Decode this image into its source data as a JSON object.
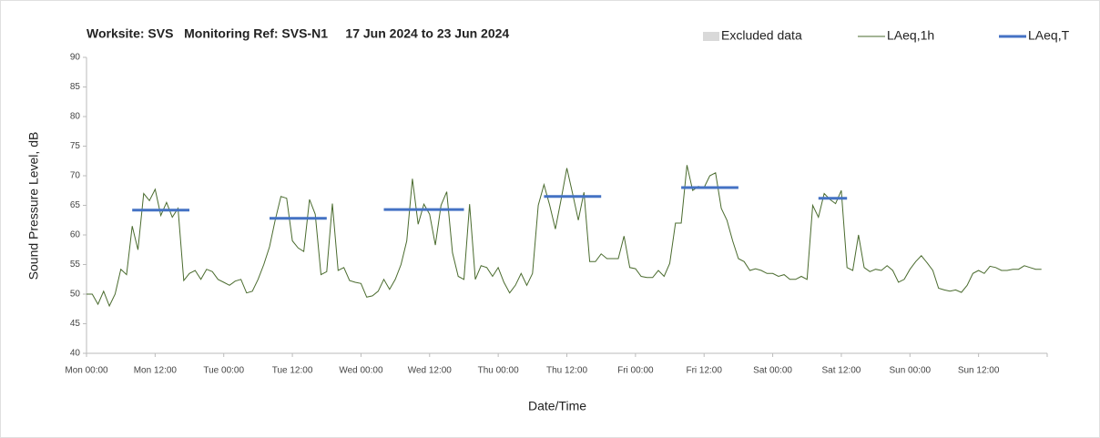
{
  "chart_data": {
    "type": "line",
    "title": "Worksite: SVS   Monitoring Ref: SVS-N1     17 Jun 2024 to 23 Jun 2024",
    "xlabel": "Date/Time",
    "ylabel": "Sound Pressure Level, dB",
    "ylim": [
      40,
      90
    ],
    "yticks": [
      40,
      45,
      50,
      55,
      60,
      65,
      70,
      75,
      80,
      85,
      90
    ],
    "grid": false,
    "legend": "top-right",
    "excluded": {
      "name": "Excluded data",
      "color": "#d9d9d9"
    },
    "categories": [
      "Mon 00:00",
      null,
      null,
      null,
      null,
      null,
      null,
      null,
      null,
      null,
      null,
      null,
      "Mon 12:00",
      null,
      null,
      null,
      null,
      null,
      null,
      null,
      null,
      null,
      null,
      null,
      "Tue 00:00",
      null,
      null,
      null,
      null,
      null,
      null,
      null,
      null,
      null,
      null,
      null,
      "Tue 12:00",
      null,
      null,
      null,
      null,
      null,
      null,
      null,
      null,
      null,
      null,
      null,
      "Wed 00:00",
      null,
      null,
      null,
      null,
      null,
      null,
      null,
      null,
      null,
      null,
      null,
      "Wed 12:00",
      null,
      null,
      null,
      null,
      null,
      null,
      null,
      null,
      null,
      null,
      null,
      "Thu 00:00",
      null,
      null,
      null,
      null,
      null,
      null,
      null,
      null,
      null,
      null,
      null,
      "Thu 12:00",
      null,
      null,
      null,
      null,
      null,
      null,
      null,
      null,
      null,
      null,
      null,
      "Fri 00:00",
      null,
      null,
      null,
      null,
      null,
      null,
      null,
      null,
      null,
      null,
      null,
      "Fri 12:00",
      null,
      null,
      null,
      null,
      null,
      null,
      null,
      null,
      null,
      null,
      null,
      "Sat 00:00",
      null,
      null,
      null,
      null,
      null,
      null,
      null,
      null,
      null,
      null,
      null,
      "Sat 12:00",
      null,
      null,
      null,
      null,
      null,
      null,
      null,
      null,
      null,
      null,
      null,
      "Sun 00:00",
      null,
      null,
      null,
      null,
      null,
      null,
      null,
      null,
      null,
      null,
      null,
      "Sun 12:00",
      null,
      null,
      null,
      null,
      null,
      null,
      null,
      null,
      null,
      null,
      null
    ],
    "series": [
      {
        "name": "LAeq,1h",
        "color": "#4a6b2e",
        "values": [
          50,
          50,
          48.3,
          50.5,
          48,
          50,
          54.2,
          53.3,
          61.5,
          57.5,
          67,
          65.8,
          67.7,
          63.3,
          65.5,
          63,
          64.5,
          52.3,
          53.5,
          54,
          52.5,
          54.2,
          53.8,
          52.5,
          52,
          51.5,
          52.2,
          52.5,
          50.2,
          50.5,
          52.5,
          55,
          58,
          62.5,
          66.5,
          66.2,
          59,
          57.8,
          57.2,
          66,
          63.5,
          53.3,
          53.8,
          65.3,
          54,
          54.5,
          52.3,
          52,
          51.8,
          49.5,
          49.7,
          50.5,
          52.5,
          50.8,
          52.5,
          55,
          59,
          69.5,
          61.8,
          65.2,
          63.5,
          58.3,
          65,
          67.3,
          57,
          53,
          52.5,
          65.2,
          52.5,
          54.8,
          54.5,
          53,
          54.5,
          52,
          50.2,
          51.5,
          53.5,
          51.5,
          53.5,
          65,
          68.5,
          65,
          61,
          66,
          71.3,
          67,
          62.5,
          67.2,
          55.5,
          55.5,
          56.8,
          56,
          56,
          56,
          59.8,
          54.5,
          54.3,
          53,
          52.8,
          52.8,
          54,
          53,
          55.2,
          62,
          62,
          71.8,
          67.5,
          68.2,
          68,
          70,
          70.5,
          64.5,
          62.5,
          59,
          56,
          55.5,
          54,
          54.3,
          54,
          53.5,
          53.5,
          53,
          53.3,
          52.5,
          52.5,
          53,
          52.5,
          65,
          63,
          67,
          66,
          65.3,
          67.5,
          54.5,
          54,
          60,
          54.5,
          53.8,
          54.2,
          54,
          54.8,
          54,
          52,
          52.5,
          54.2,
          55.5,
          56.5,
          55.3,
          54,
          51,
          50.7,
          50.5,
          50.7,
          50.3,
          51.5,
          53.5,
          54,
          53.5,
          54.7,
          54.5,
          54,
          54,
          54.2,
          54.2,
          54.8,
          54.5,
          54.2,
          54.2
        ]
      },
      {
        "name": "LAeq,T",
        "color": "#4472c4",
        "values": [
          null,
          null,
          null,
          null,
          null,
          null,
          null,
          null,
          64.2,
          64.2,
          64.2,
          64.2,
          64.2,
          64.2,
          64.2,
          64.2,
          64.2,
          64.2,
          64.2,
          null,
          null,
          null,
          null,
          null,
          null,
          null,
          null,
          null,
          null,
          null,
          null,
          null,
          62.8,
          62.8,
          62.8,
          62.8,
          62.8,
          62.8,
          62.8,
          62.8,
          62.8,
          62.8,
          62.8,
          null,
          null,
          null,
          null,
          null,
          null,
          null,
          null,
          null,
          64.3,
          64.3,
          64.3,
          64.3,
          64.3,
          64.3,
          64.3,
          64.3,
          64.3,
          64.3,
          64.3,
          64.3,
          64.3,
          64.3,
          64.3,
          null,
          null,
          null,
          null,
          null,
          null,
          null,
          null,
          null,
          null,
          null,
          null,
          null,
          66.5,
          66.5,
          66.5,
          66.5,
          66.5,
          66.5,
          66.5,
          66.5,
          66.5,
          66.5,
          66.5,
          null,
          null,
          null,
          null,
          null,
          null,
          null,
          null,
          null,
          null,
          null,
          null,
          null,
          68,
          68,
          68,
          68,
          68,
          68,
          68,
          68,
          68,
          68,
          68,
          null,
          null,
          null,
          null,
          null,
          null,
          null,
          null,
          null,
          null,
          null,
          null,
          null,
          66.2,
          66.2,
          66.2,
          66.2,
          66.2,
          66.2,
          null,
          null,
          null,
          null,
          null,
          null,
          null,
          null,
          null,
          null,
          null,
          null,
          null,
          null,
          null,
          null,
          null,
          null,
          null,
          null,
          null,
          null,
          null,
          null,
          null,
          null,
          null,
          null,
          null,
          null,
          null,
          null,
          null,
          null
        ]
      }
    ]
  }
}
